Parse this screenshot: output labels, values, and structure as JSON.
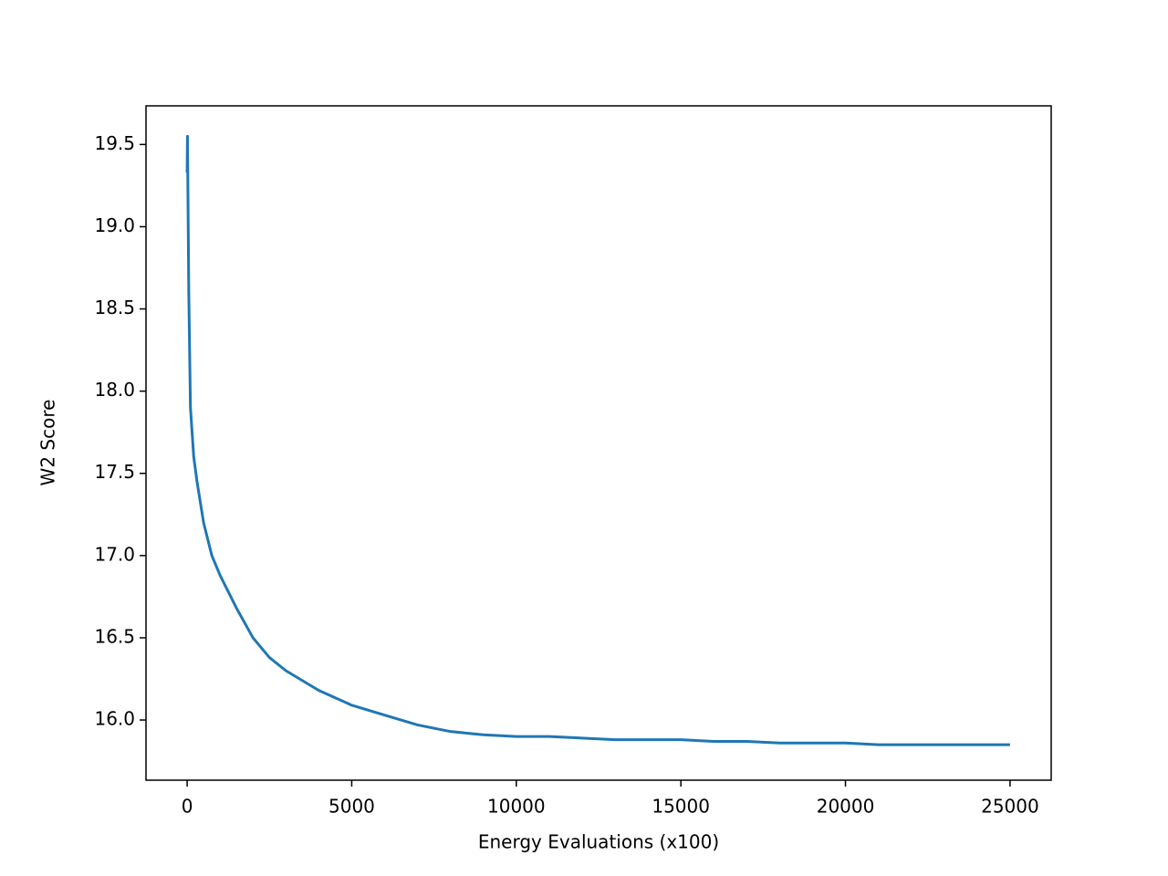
{
  "chart_data": {
    "type": "line",
    "xlabel": "Energy Evaluations (x100)",
    "ylabel": "W2 Score",
    "x": [
      0,
      10,
      20,
      50,
      100,
      200,
      300,
      500,
      750,
      1000,
      1500,
      2000,
      2500,
      3000,
      4000,
      5000,
      6000,
      7000,
      8000,
      9000,
      10000,
      11000,
      12000,
      13000,
      14000,
      15000,
      16000,
      17000,
      18000,
      19000,
      20000,
      21000,
      22000,
      23000,
      24000,
      25000
    ],
    "series": [
      {
        "color": "#1f77b4",
        "values": [
          19.33,
          19.55,
          19.3,
          18.6,
          17.9,
          17.6,
          17.45,
          17.2,
          17.0,
          16.88,
          16.68,
          16.5,
          16.38,
          16.3,
          16.18,
          16.09,
          16.03,
          15.97,
          15.93,
          15.91,
          15.9,
          15.9,
          15.89,
          15.88,
          15.88,
          15.88,
          15.87,
          15.87,
          15.86,
          15.86,
          15.86,
          15.85,
          15.85,
          15.85,
          15.85,
          15.85
        ]
      }
    ],
    "xlim": [
      -1250,
      26250
    ],
    "xticks": [
      0,
      5000,
      10000,
      15000,
      20000,
      25000
    ],
    "ylim": [
      15.634,
      19.735
    ],
    "yticks": [
      {
        "value": 16,
        "label": "16.0"
      },
      16.5,
      {
        "value": 17,
        "label": "17.0"
      },
      17.5,
      {
        "value": 18,
        "label": "18.0"
      },
      18.5,
      {
        "value": 19,
        "label": "19.0"
      },
      19.5
    ],
    "grid": false
  }
}
